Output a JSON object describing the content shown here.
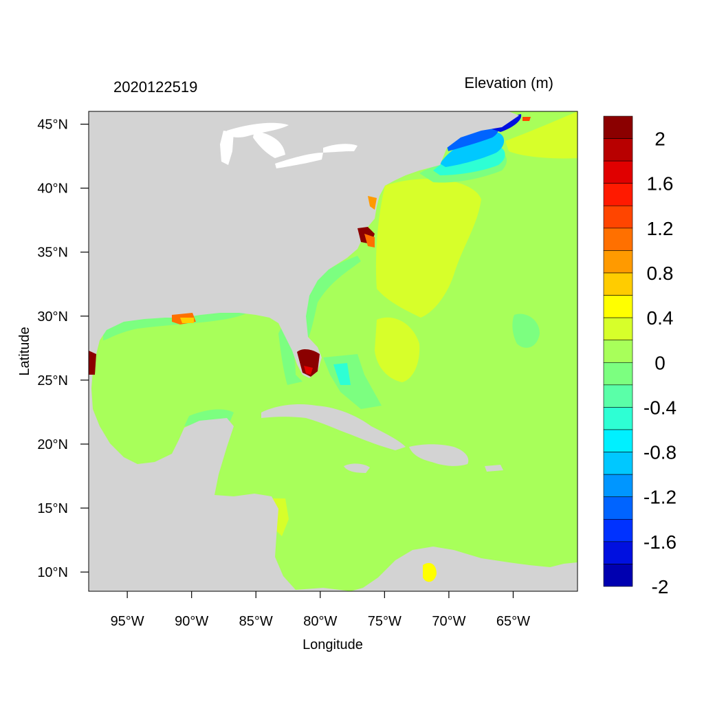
{
  "header": {
    "timestamp": "2020122519",
    "variable": "Elevation (m)"
  },
  "axes": {
    "xlabel": "Longitude",
    "ylabel": "Latitude",
    "x_ticks": [
      "95°W",
      "90°W",
      "85°W",
      "80°W",
      "75°W",
      "70°W",
      "65°W"
    ],
    "x_tick_values": [
      -95,
      -90,
      -85,
      -80,
      -75,
      -70,
      -65
    ],
    "y_ticks": [
      "10°N",
      "15°N",
      "20°N",
      "25°N",
      "30°N",
      "35°N",
      "40°N",
      "45°N"
    ],
    "y_tick_values": [
      10,
      15,
      20,
      25,
      30,
      35,
      40,
      45
    ],
    "xlim": [
      -98,
      -60
    ],
    "ylim": [
      8.5,
      46
    ]
  },
  "colorbar": {
    "labels": [
      "2",
      "1.6",
      "1.2",
      "0.8",
      "0.4",
      "0",
      "-0.4",
      "-0.8",
      "-1.2",
      "-1.6",
      "-2"
    ],
    "colors": [
      "#8b0000",
      "#b80000",
      "#e00000",
      "#ff1a00",
      "#ff4500",
      "#ff7000",
      "#ff9a00",
      "#ffcc00",
      "#ffff00",
      "#d7ff2a",
      "#a8ff5a",
      "#7cff80",
      "#5affa8",
      "#2effd4",
      "#00f0ff",
      "#00c8ff",
      "#0096ff",
      "#0064ff",
      "#0032ff",
      "#0010e0",
      "#0000b0"
    ]
  },
  "colors": {
    "land": "#d3d3d3",
    "ocean_base": "#a8ff5a"
  }
}
